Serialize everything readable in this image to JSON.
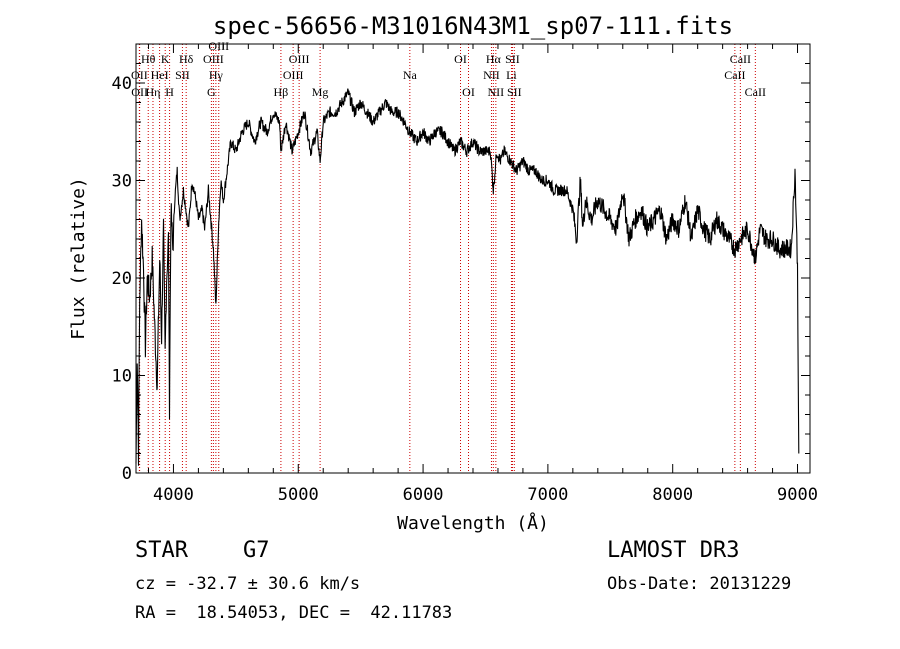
{
  "chart_data": {
    "type": "line",
    "title": "spec-56656-M31016N43M1_sp07-111.fits",
    "xlabel": "Wavelength (Å)",
    "ylabel": "Flux (relative)",
    "xlim": [
      3700,
      9100
    ],
    "ylim": [
      0,
      44
    ],
    "xticks": [
      4000,
      5000,
      6000,
      7000,
      8000,
      9000
    ],
    "yticks": [
      0,
      10,
      20,
      30,
      40
    ],
    "grid": false,
    "series": [
      {
        "name": "flux",
        "x": [
          3700,
          3710,
          3720,
          3730,
          3745,
          3760,
          3775,
          3790,
          3810,
          3830,
          3850,
          3870,
          3890,
          3905,
          3920,
          3933,
          3945,
          3960,
          3968,
          3980,
          3995,
          4010,
          4030,
          4050,
          4080,
          4101,
          4120,
          4150,
          4180,
          4200,
          4230,
          4250,
          4280,
          4300,
          4320,
          4340,
          4360,
          4380,
          4400,
          4430,
          4460,
          4500,
          4550,
          4600,
          4650,
          4700,
          4750,
          4800,
          4850,
          4861,
          4900,
          4950,
          5000,
          5050,
          5100,
          5150,
          5175,
          5200,
          5250,
          5300,
          5350,
          5400,
          5450,
          5500,
          5550,
          5600,
          5650,
          5700,
          5750,
          5800,
          5850,
          5890,
          5950,
          6000,
          6050,
          6100,
          6150,
          6200,
          6250,
          6300,
          6350,
          6400,
          6450,
          6500,
          6540,
          6563,
          6590,
          6620,
          6650,
          6700,
          6750,
          6800,
          6850,
          6900,
          6950,
          7000,
          7050,
          7100,
          7150,
          7200,
          7230,
          7260,
          7280,
          7300,
          7350,
          7400,
          7450,
          7500,
          7550,
          7600,
          7650,
          7700,
          7750,
          7800,
          7850,
          7900,
          7950,
          8000,
          8050,
          8100,
          8150,
          8200,
          8250,
          8300,
          8350,
          8400,
          8450,
          8498,
          8542,
          8600,
          8662,
          8700,
          8750,
          8800,
          8850,
          8900,
          8950,
          8980,
          9000,
          9010
        ],
        "y": [
          1,
          12,
          2,
          18,
          26,
          21,
          13,
          20,
          18,
          22,
          15,
          9,
          22,
          14,
          25,
          12,
          20,
          24,
          7,
          27,
          23,
          28,
          31,
          26,
          29,
          27,
          25,
          30,
          28,
          26,
          27,
          25,
          29,
          26,
          23,
          17,
          25,
          30,
          28,
          31,
          34,
          33,
          35,
          36,
          34,
          36,
          35,
          37,
          36,
          33,
          36,
          33,
          35,
          37,
          33,
          35,
          32,
          36,
          37,
          37,
          38,
          39,
          37,
          38,
          37,
          36,
          37,
          38,
          37,
          37,
          36,
          35,
          34,
          35,
          34,
          35,
          35,
          34,
          33,
          34,
          33,
          34,
          33,
          33,
          33,
          29,
          33,
          32,
          33,
          32,
          31,
          32,
          31,
          31,
          30,
          30,
          29,
          29,
          29,
          27,
          24,
          30,
          25,
          28,
          26,
          28,
          27,
          26,
          25,
          29,
          24,
          26,
          27,
          25,
          26,
          27,
          24,
          26,
          25,
          28,
          24,
          27,
          25,
          24,
          26,
          25,
          24,
          23,
          24,
          25,
          22,
          25,
          24,
          24,
          23,
          23,
          23,
          31,
          21,
          2
        ]
      }
    ],
    "emission_lines": [
      {
        "name": "Hθ",
        "wavelength": 3798,
        "row": 1
      },
      {
        "name": "OII",
        "wavelength": 3727,
        "row": 2
      },
      {
        "name": "OII",
        "wavelength": 3729,
        "row": 3
      },
      {
        "name": "Hη",
        "wavelength": 3836,
        "row": 3
      },
      {
        "name": "HeI",
        "wavelength": 3889,
        "row": 2
      },
      {
        "name": "K",
        "wavelength": 3934,
        "row": 1
      },
      {
        "name": "H",
        "wavelength": 3969,
        "row": 3
      },
      {
        "name": "SII",
        "wavelength": 4072,
        "row": 2
      },
      {
        "name": "Hδ",
        "wavelength": 4102,
        "row": 1
      },
      {
        "name": "G",
        "wavelength": 4304,
        "row": 3
      },
      {
        "name": "OIII",
        "wavelength": 4320,
        "row": 1
      },
      {
        "name": "Hγ",
        "wavelength": 4340,
        "row": 2
      },
      {
        "name": "OIII",
        "wavelength": 4363,
        "row": 0
      },
      {
        "name": "Hβ",
        "wavelength": 4861,
        "row": 3
      },
      {
        "name": "OIII",
        "wavelength": 4959,
        "row": 2
      },
      {
        "name": "OIII",
        "wavelength": 5007,
        "row": 1
      },
      {
        "name": "Mg",
        "wavelength": 5175,
        "row": 3
      },
      {
        "name": "Na",
        "wavelength": 5894,
        "row": 2
      },
      {
        "name": "OI",
        "wavelength": 6300,
        "row": 1
      },
      {
        "name": "OI",
        "wavelength": 6364,
        "row": 3
      },
      {
        "name": "NII",
        "wavelength": 6548,
        "row": 2
      },
      {
        "name": "Hα",
        "wavelength": 6563,
        "row": 1
      },
      {
        "name": "NII",
        "wavelength": 6583,
        "row": 3
      },
      {
        "name": "Li",
        "wavelength": 6708,
        "row": 2
      },
      {
        "name": "SII",
        "wavelength": 6716,
        "row": 1
      },
      {
        "name": "SII",
        "wavelength": 6731,
        "row": 3
      },
      {
        "name": "CaII",
        "wavelength": 8498,
        "row": 2
      },
      {
        "name": "CaII",
        "wavelength": 8542,
        "row": 1
      },
      {
        "name": "CaII",
        "wavelength": 8662,
        "row": 3
      }
    ],
    "line_color": "#000000",
    "marker_color": "#cc0000"
  },
  "info": {
    "object_class": "STAR",
    "subclass": "G7",
    "survey": "LAMOST DR3",
    "redshift": "cz = -32.7 ± 30.6 km/s",
    "obs_date": "Obs-Date: 20131229",
    "coordinates": "RA =  18.54053, DEC =  42.11783"
  }
}
